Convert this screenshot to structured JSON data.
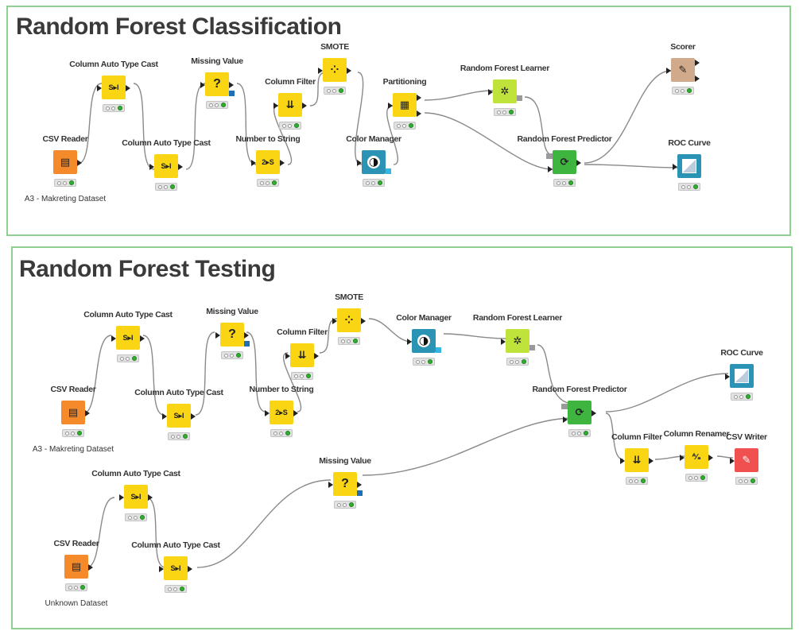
{
  "colors": {
    "panel_border": "#8ed08e",
    "reader": "#f58a2b",
    "manipulator": "#f9d514",
    "learner": "#bfe33a",
    "predictor": "#3eb53e",
    "view": "#2b93b3",
    "scorer": "#d1a98b",
    "writer": "#f05050",
    "wire": "#888888"
  },
  "panels": [
    {
      "title": "Random Forest Classification",
      "nodes": [
        {
          "id": "csv-reader",
          "label": "CSV Reader",
          "note": "A3 - Makreting Dataset",
          "icon": "table-reader-icon"
        },
        {
          "id": "col-auto-type-cast-1",
          "label": "Column Auto Type Cast",
          "icon": "type-cast-icon"
        },
        {
          "id": "col-auto-type-cast-2",
          "label": "Column Auto Type Cast",
          "icon": "type-cast-icon"
        },
        {
          "id": "missing-value",
          "label": "Missing Value",
          "icon": "question-icon"
        },
        {
          "id": "number-to-string",
          "label": "Number to String",
          "icon": "convert-icon"
        },
        {
          "id": "column-filter",
          "label": "Column Filter",
          "icon": "filter-icon"
        },
        {
          "id": "smote",
          "label": "SMOTE",
          "icon": "scatter-icon"
        },
        {
          "id": "color-manager",
          "label": "Color Manager",
          "icon": "color-drop-icon"
        },
        {
          "id": "partitioning",
          "label": "Partitioning",
          "icon": "grid-icon"
        },
        {
          "id": "rf-learner",
          "label": "Random Forest Learner",
          "icon": "tree-learner-icon"
        },
        {
          "id": "rf-predictor",
          "label": "Random Forest Predictor",
          "icon": "tree-predictor-icon"
        },
        {
          "id": "scorer",
          "label": "Scorer",
          "icon": "scorer-icon"
        },
        {
          "id": "roc-curve",
          "label": "ROC Curve",
          "icon": "roc-icon"
        }
      ]
    },
    {
      "title": "Random Forest Testing",
      "nodes": [
        {
          "id": "csv-reader-1",
          "label": "CSV Reader",
          "note": "A3 - Makreting Dataset",
          "icon": "table-reader-icon"
        },
        {
          "id": "col-auto-type-cast-1",
          "label": "Column Auto Type Cast",
          "icon": "type-cast-icon"
        },
        {
          "id": "col-auto-type-cast-2",
          "label": "Column Auto Type Cast",
          "icon": "type-cast-icon"
        },
        {
          "id": "missing-value-1",
          "label": "Missing Value",
          "icon": "question-icon"
        },
        {
          "id": "number-to-string",
          "label": "Number to String",
          "icon": "convert-icon"
        },
        {
          "id": "column-filter-1",
          "label": "Column Filter",
          "icon": "filter-icon"
        },
        {
          "id": "smote",
          "label": "SMOTE",
          "icon": "scatter-icon"
        },
        {
          "id": "color-manager",
          "label": "Color Manager",
          "icon": "color-drop-icon"
        },
        {
          "id": "rf-learner",
          "label": "Random Forest Learner",
          "icon": "tree-learner-icon"
        },
        {
          "id": "rf-predictor",
          "label": "Random Forest Predictor",
          "icon": "tree-predictor-icon"
        },
        {
          "id": "roc-curve",
          "label": "ROC Curve",
          "icon": "roc-icon"
        },
        {
          "id": "column-filter-2",
          "label": "Column Filter",
          "icon": "filter-icon"
        },
        {
          "id": "column-renamer",
          "label": "Column Renamer",
          "icon": "renamer-icon"
        },
        {
          "id": "csv-writer",
          "label": "CSV Writer",
          "icon": "writer-icon"
        },
        {
          "id": "csv-reader-2",
          "label": "CSV Reader",
          "note": "Unknown Dataset",
          "icon": "table-reader-icon"
        },
        {
          "id": "col-auto-type-cast-3",
          "label": "Column Auto Type Cast",
          "icon": "type-cast-icon"
        },
        {
          "id": "col-auto-type-cast-4",
          "label": "Column Auto Type Cast",
          "icon": "type-cast-icon"
        },
        {
          "id": "missing-value-2",
          "label": "Missing Value",
          "icon": "question-icon"
        }
      ]
    }
  ],
  "glyphs": {
    "type_cast": "S▸I",
    "missing": "?",
    "num_to_str": "2▸S",
    "filter": "⇊",
    "smote": "⁘",
    "color": "◑",
    "partition": "▦",
    "learner": "✲",
    "predictor": "⟳",
    "scorer": "✎",
    "renamer": "ᴬ⁄ₐ",
    "reader": "▤",
    "writer": "✎"
  }
}
